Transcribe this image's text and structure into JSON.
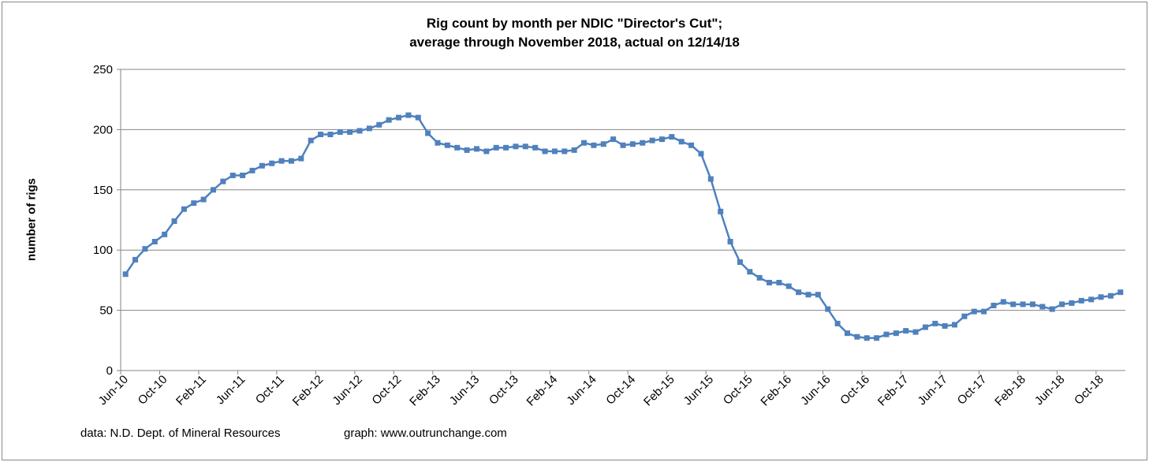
{
  "chart_data": {
    "type": "line",
    "title": [
      "Rig count by month per NDIC \"Director's Cut\";",
      "average through November 2018, actual  on 12/14/18"
    ],
    "xlabel": "",
    "ylabel": "number of rigs",
    "ylim": [
      0,
      250
    ],
    "yticks": [
      0,
      50,
      100,
      150,
      200,
      250
    ],
    "grid": true,
    "legend": "none",
    "series_color": "#4f81bd",
    "start_month": "Jun-10",
    "xtick_labels": [
      "Jun-10",
      "Oct-10",
      "Feb-11",
      "Jun-11",
      "Oct-11",
      "Feb-12",
      "Jun-12",
      "Oct-12",
      "Feb-13",
      "Jun-13",
      "Oct-13",
      "Feb-14",
      "Jun-14",
      "Oct-14",
      "Feb-15",
      "Jun-15",
      "Oct-15",
      "Feb-16",
      "Jun-16",
      "Oct-16",
      "Feb-17",
      "Jun-17",
      "Oct-17",
      "Feb-18",
      "Jun-18",
      "Oct-18"
    ],
    "values": [
      80,
      92,
      101,
      107,
      113,
      124,
      134,
      139,
      142,
      150,
      157,
      162,
      162,
      166,
      170,
      172,
      174,
      174,
      176,
      191,
      196,
      196,
      198,
      198,
      199,
      201,
      204,
      208,
      210,
      212,
      210,
      197,
      189,
      187,
      185,
      183,
      184,
      182,
      185,
      185,
      186,
      186,
      185,
      182,
      182,
      182,
      183,
      189,
      187,
      188,
      192,
      187,
      188,
      189,
      191,
      192,
      194,
      190,
      187,
      180,
      159,
      132,
      107,
      90,
      82,
      77,
      73,
      73,
      70,
      65,
      63,
      63,
      51,
      39,
      31,
      28,
      27,
      27,
      30,
      31,
      33,
      32,
      36,
      39,
      37,
      38,
      45,
      49,
      49,
      54,
      57,
      55,
      55,
      55,
      53,
      51,
      55,
      56,
      58,
      59,
      61,
      62,
      65
    ]
  },
  "footer": {
    "source": "data: N.D. Dept. of Mineral Resources",
    "credit": "graph:  www.outrunchange.com"
  }
}
